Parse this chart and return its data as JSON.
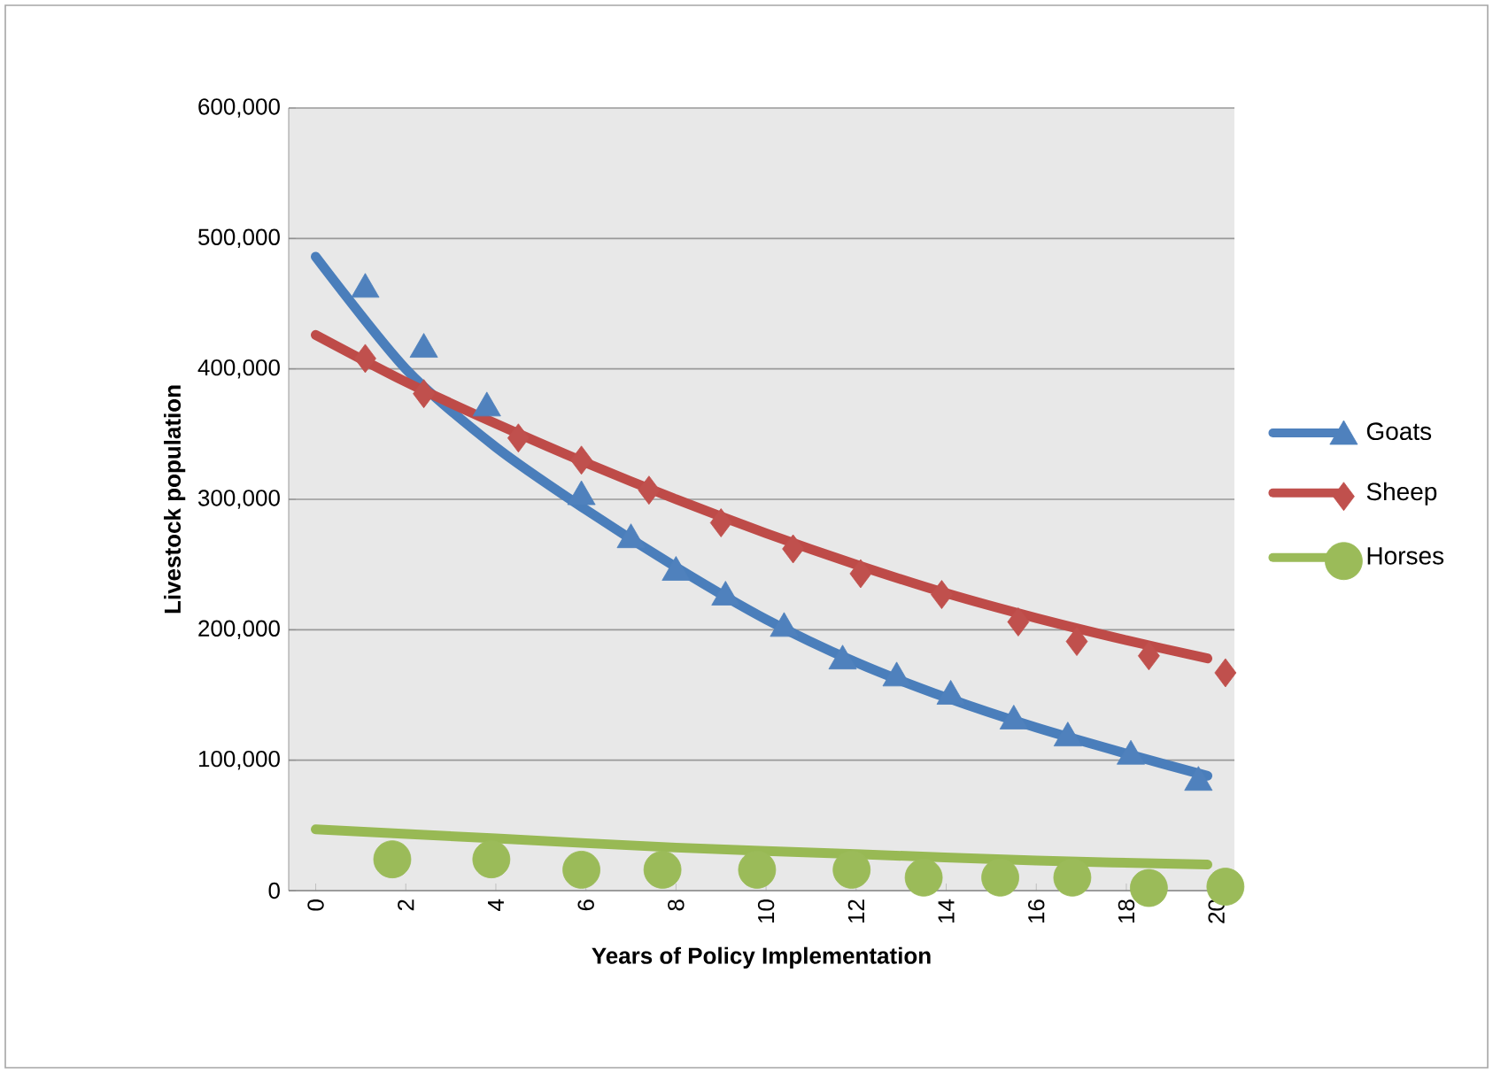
{
  "chart_data": {
    "type": "scatter",
    "xlabel": "Years of Policy Implementation",
    "ylabel": "Livestock population",
    "xlim": [
      -0.6,
      20.4
    ],
    "ylim": [
      0,
      600000
    ],
    "xticks": [
      0,
      2,
      4,
      6,
      8,
      10,
      12,
      14,
      16,
      18,
      20
    ],
    "yticks": [
      {
        "value": 0,
        "label": "0"
      },
      {
        "value": 100000,
        "label": "100,000"
      },
      {
        "value": 200000,
        "label": "200,000"
      },
      {
        "value": 300000,
        "label": "300,000"
      },
      {
        "value": 400000,
        "label": "400,000"
      },
      {
        "value": 500000,
        "label": "500,000"
      },
      {
        "value": 600000,
        "label": "600,000"
      }
    ],
    "grid": "y",
    "legend": "right",
    "series": [
      {
        "name": "Goats",
        "marker": "triangle",
        "color": "#4f81bd",
        "x": [
          1.1,
          2.4,
          3.8,
          5.9,
          7.0,
          8.0,
          9.1,
          10.4,
          11.7,
          12.9,
          14.1,
          15.5,
          16.7,
          18.1,
          19.6
        ],
        "values": [
          461000,
          415000,
          370000,
          302000,
          269000,
          244000,
          225000,
          201000,
          176000,
          163000,
          149000,
          130000,
          117000,
          103000,
          83000
        ]
      },
      {
        "name": "Sheep",
        "marker": "diamond",
        "color": "#c0504d",
        "x": [
          1.1,
          2.4,
          4.5,
          5.9,
          7.4,
          9.0,
          10.6,
          12.1,
          13.9,
          15.6,
          16.9,
          18.5,
          20.2
        ],
        "values": [
          408000,
          381000,
          347000,
          330000,
          307000,
          282000,
          262000,
          243000,
          227000,
          206000,
          191000,
          180000,
          167000
        ]
      },
      {
        "name": "Horses",
        "marker": "circle",
        "color": "#9bbb59",
        "x": [
          1.7,
          3.9,
          5.9,
          7.7,
          9.8,
          11.9,
          13.5,
          15.2,
          16.8,
          18.5,
          20.2
        ],
        "values": [
          24000,
          24000,
          16000,
          16000,
          16000,
          16000,
          10000,
          10000,
          10000,
          2000,
          3000
        ]
      },
      {
        "type": "line",
        "color": "#4a7ebb",
        "x": [
          0,
          2,
          4,
          6,
          8,
          10,
          12,
          14,
          16,
          18,
          19.8
        ],
        "values": [
          486000,
          400000,
          340000,
          292000,
          248000,
          208000,
          175000,
          148000,
          125000,
          105000,
          88000
        ]
      },
      {
        "type": "line",
        "color": "#be4b48",
        "x": [
          0,
          2,
          4,
          6,
          8,
          10,
          12,
          14,
          16,
          18,
          19.8
        ],
        "values": [
          426000,
          390000,
          358000,
          328000,
          300000,
          274000,
          250000,
          228000,
          209000,
          192000,
          178000
        ]
      },
      {
        "type": "line",
        "color": "#98b954",
        "x": [
          0,
          4,
          8,
          12,
          16,
          19.8
        ],
        "values": [
          47000,
          40000,
          33000,
          28000,
          23000,
          20000
        ]
      }
    ]
  }
}
